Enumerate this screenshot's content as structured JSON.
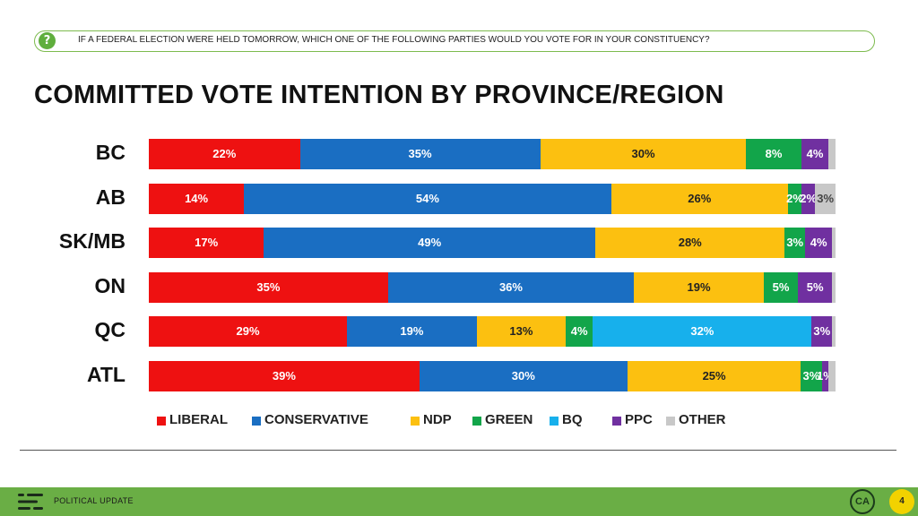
{
  "question": {
    "icon": "question-icon",
    "text": "IF A FEDERAL ELECTION WERE HELD TOMORROW, WHICH ONE OF THE FOLLOWING PARTIES WOULD YOU VOTE FOR IN YOUR CONSTITUENCY?"
  },
  "chart_data": {
    "type": "bar",
    "orientation": "horizontal",
    "stacked": true,
    "title": "COMMITTED VOTE INTENTION BY PROVINCE/REGION",
    "categories": [
      "BC",
      "AB",
      "SK/MB",
      "ON",
      "QC",
      "ATL"
    ],
    "series": [
      {
        "name": "LIBERAL",
        "color": "#ee1111",
        "label_color": "#ffffff",
        "values": [
          22,
          14,
          17,
          35,
          29,
          39
        ],
        "labels": [
          "22%",
          "14%",
          "17%",
          "35%",
          "29%",
          "39%"
        ]
      },
      {
        "name": "CONSERVATIVE",
        "color": "#1a6ec2",
        "label_color": "#ffffff",
        "values": [
          35,
          54,
          49,
          36,
          19,
          30
        ],
        "labels": [
          "35%",
          "54%",
          "49%",
          "36%",
          "19%",
          "30%"
        ]
      },
      {
        "name": "NDP",
        "color": "#fcc010",
        "label_color": "#222222",
        "values": [
          30,
          26,
          28,
          19,
          13,
          25
        ],
        "labels": [
          "30%",
          "26%",
          "28%",
          "19%",
          "13%",
          "25%"
        ]
      },
      {
        "name": "GREEN",
        "color": "#12a54a",
        "label_color": "#ffffff",
        "values": [
          8,
          2,
          3,
          5,
          4,
          3
        ],
        "labels": [
          "8%",
          "2%",
          "3%",
          "5%",
          "4%",
          "3%"
        ]
      },
      {
        "name": "BQ",
        "color": "#17b0ec",
        "label_color": "#ffffff",
        "values": [
          0,
          0,
          0,
          0,
          32,
          0
        ],
        "labels": [
          "",
          "",
          "",
          "",
          "32%",
          ""
        ]
      },
      {
        "name": "PPC",
        "color": "#7030a0",
        "label_color": "#ffffff",
        "values": [
          4,
          2,
          4,
          5,
          3,
          1
        ],
        "labels": [
          "4%",
          "2%",
          "4%",
          "5%",
          "3%",
          "1%"
        ]
      },
      {
        "name": "OTHER",
        "color": "#c8c8c8",
        "label_color": "#444444",
        "values": [
          1,
          3,
          0.5,
          0.5,
          0.5,
          1
        ],
        "labels": [
          "",
          "3%",
          "",
          "",
          "",
          ""
        ]
      }
    ],
    "xlim": [
      0,
      100
    ],
    "legend_position": "bottom"
  },
  "footer": {
    "icon": "menu-lines-icon",
    "text": "POLITICAL UPDATE",
    "logo": "CA",
    "page": "4"
  }
}
